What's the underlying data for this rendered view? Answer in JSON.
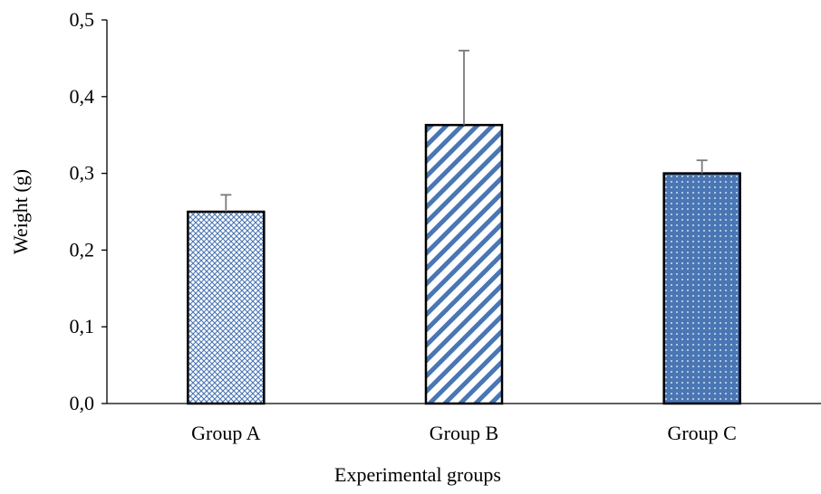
{
  "chart_data": {
    "type": "bar",
    "xlabel": "Experimental groups",
    "ylabel": "Weight (g)",
    "ylim": [
      0,
      0.5
    ],
    "yticks": [
      0,
      0.1,
      0.2,
      0.3,
      0.4,
      0.5
    ],
    "ytick_labels": [
      "0,0",
      "0,1",
      "0,2",
      "0,3",
      "0,4",
      "0,5"
    ],
    "categories": [
      "Group A",
      "Group B",
      "Group C"
    ],
    "values": [
      0.25,
      0.363,
      0.3
    ],
    "error_plus": [
      0.022,
      0.097,
      0.017
    ],
    "bar_patterns": [
      "crosshatch",
      "diagonal-stripes",
      "dots"
    ],
    "colors": {
      "pattern": "#4a76b4",
      "dark_fill": "#4a76b4",
      "axis": "#000000",
      "error_bar": "#7a7a7a"
    },
    "grid": false,
    "legend": "none"
  }
}
